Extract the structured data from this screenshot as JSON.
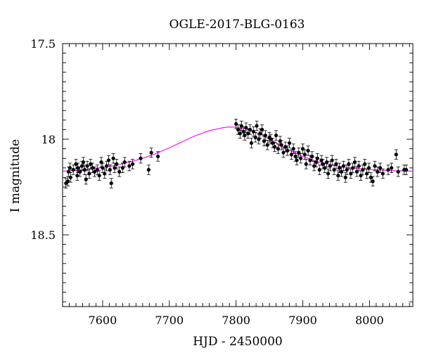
{
  "chart_data": {
    "type": "scatter",
    "title": "OGLE-2017-BLG-0163",
    "xlabel": "HJD - 2450000",
    "ylabel": "I magnitude",
    "xlim": [
      7540,
      8065
    ],
    "ylim": [
      18.875,
      17.5
    ],
    "y_inverted": true,
    "xticks": [
      7600,
      7700,
      7800,
      7900,
      8000
    ],
    "xtick_labels": [
      "7600",
      "7700",
      "7800",
      "7900",
      "8000"
    ],
    "yticks": [
      17.5,
      18,
      18.5
    ],
    "ytick_labels": [
      "17.5",
      "18",
      "18.5"
    ],
    "grid": false,
    "colors": {
      "points": "#000000",
      "model": "#ff00ff"
    },
    "series": [
      {
        "kind": "points_with_errorbars",
        "points": [
          {
            "x": 7545,
            "y": 18.23,
            "err": 0.025
          },
          {
            "x": 7548,
            "y": 18.22,
            "err": 0.025
          },
          {
            "x": 7549,
            "y": 18.17,
            "err": 0.025
          },
          {
            "x": 7551,
            "y": 18.15,
            "err": 0.025
          },
          {
            "x": 7552,
            "y": 18.2,
            "err": 0.025
          },
          {
            "x": 7556,
            "y": 18.16,
            "err": 0.025
          },
          {
            "x": 7560,
            "y": 18.13,
            "err": 0.025
          },
          {
            "x": 7562,
            "y": 18.19,
            "err": 0.025
          },
          {
            "x": 7563,
            "y": 18.15,
            "err": 0.025
          },
          {
            "x": 7566,
            "y": 18.17,
            "err": 0.025
          },
          {
            "x": 7569,
            "y": 18.14,
            "err": 0.025
          },
          {
            "x": 7571,
            "y": 18.12,
            "err": 0.025
          },
          {
            "x": 7573,
            "y": 18.16,
            "err": 0.025
          },
          {
            "x": 7575,
            "y": 18.21,
            "err": 0.025
          },
          {
            "x": 7577,
            "y": 18.14,
            "err": 0.025
          },
          {
            "x": 7580,
            "y": 18.18,
            "err": 0.025
          },
          {
            "x": 7582,
            "y": 18.13,
            "err": 0.025
          },
          {
            "x": 7585,
            "y": 18.15,
            "err": 0.025
          },
          {
            "x": 7588,
            "y": 18.17,
            "err": 0.025
          },
          {
            "x": 7592,
            "y": 18.16,
            "err": 0.025
          },
          {
            "x": 7595,
            "y": 18.19,
            "err": 0.025
          },
          {
            "x": 7598,
            "y": 18.12,
            "err": 0.025
          },
          {
            "x": 7600,
            "y": 18.15,
            "err": 0.025
          },
          {
            "x": 7603,
            "y": 18.18,
            "err": 0.025
          },
          {
            "x": 7606,
            "y": 18.14,
            "err": 0.025
          },
          {
            "x": 7609,
            "y": 18.11,
            "err": 0.025
          },
          {
            "x": 7611,
            "y": 18.16,
            "err": 0.025
          },
          {
            "x": 7613,
            "y": 18.23,
            "err": 0.025
          },
          {
            "x": 7616,
            "y": 18.1,
            "err": 0.025
          },
          {
            "x": 7618,
            "y": 18.15,
            "err": 0.025
          },
          {
            "x": 7621,
            "y": 18.13,
            "err": 0.025
          },
          {
            "x": 7625,
            "y": 18.17,
            "err": 0.025
          },
          {
            "x": 7630,
            "y": 18.15,
            "err": 0.025
          },
          {
            "x": 7633,
            "y": 18.12,
            "err": 0.025
          },
          {
            "x": 7640,
            "y": 18.14,
            "err": 0.025
          },
          {
            "x": 7645,
            "y": 18.13,
            "err": 0.025
          },
          {
            "x": 7657,
            "y": 18.1,
            "err": 0.025
          },
          {
            "x": 7669,
            "y": 18.16,
            "err": 0.025
          },
          {
            "x": 7673,
            "y": 18.07,
            "err": 0.025
          },
          {
            "x": 7683,
            "y": 18.09,
            "err": 0.025
          },
          {
            "x": 7800,
            "y": 17.92,
            "err": 0.025
          },
          {
            "x": 7803,
            "y": 17.95,
            "err": 0.025
          },
          {
            "x": 7806,
            "y": 17.97,
            "err": 0.025
          },
          {
            "x": 7808,
            "y": 17.93,
            "err": 0.025
          },
          {
            "x": 7811,
            "y": 17.96,
            "err": 0.025
          },
          {
            "x": 7813,
            "y": 17.98,
            "err": 0.025
          },
          {
            "x": 7815,
            "y": 17.94,
            "err": 0.025
          },
          {
            "x": 7818,
            "y": 17.97,
            "err": 0.025
          },
          {
            "x": 7821,
            "y": 17.95,
            "err": 0.025
          },
          {
            "x": 7823,
            "y": 18.02,
            "err": 0.025
          },
          {
            "x": 7826,
            "y": 17.96,
            "err": 0.025
          },
          {
            "x": 7829,
            "y": 17.99,
            "err": 0.025
          },
          {
            "x": 7831,
            "y": 17.93,
            "err": 0.025
          },
          {
            "x": 7834,
            "y": 18.0,
            "err": 0.025
          },
          {
            "x": 7836,
            "y": 17.97,
            "err": 0.025
          },
          {
            "x": 7839,
            "y": 17.95,
            "err": 0.025
          },
          {
            "x": 7842,
            "y": 18.01,
            "err": 0.025
          },
          {
            "x": 7844,
            "y": 17.98,
            "err": 0.025
          },
          {
            "x": 7847,
            "y": 18.03,
            "err": 0.025
          },
          {
            "x": 7850,
            "y": 17.99,
            "err": 0.025
          },
          {
            "x": 7852,
            "y": 18.0,
            "err": 0.025
          },
          {
            "x": 7855,
            "y": 18.02,
            "err": 0.025
          },
          {
            "x": 7858,
            "y": 18.04,
            "err": 0.025
          },
          {
            "x": 7860,
            "y": 17.98,
            "err": 0.025
          },
          {
            "x": 7863,
            "y": 18.05,
            "err": 0.025
          },
          {
            "x": 7866,
            "y": 18.01,
            "err": 0.025
          },
          {
            "x": 7868,
            "y": 18.03,
            "err": 0.025
          },
          {
            "x": 7871,
            "y": 18.07,
            "err": 0.025
          },
          {
            "x": 7874,
            "y": 18.04,
            "err": 0.025
          },
          {
            "x": 7877,
            "y": 18.06,
            "err": 0.025
          },
          {
            "x": 7880,
            "y": 18.02,
            "err": 0.025
          },
          {
            "x": 7883,
            "y": 18.08,
            "err": 0.025
          },
          {
            "x": 7886,
            "y": 18.05,
            "err": 0.025
          },
          {
            "x": 7889,
            "y": 18.09,
            "err": 0.025
          },
          {
            "x": 7891,
            "y": 18.11,
            "err": 0.025
          },
          {
            "x": 7894,
            "y": 18.07,
            "err": 0.025
          },
          {
            "x": 7897,
            "y": 18.1,
            "err": 0.025
          },
          {
            "x": 7900,
            "y": 18.05,
            "err": 0.025
          },
          {
            "x": 7903,
            "y": 18.08,
            "err": 0.025
          },
          {
            "x": 7905,
            "y": 18.13,
            "err": 0.025
          },
          {
            "x": 7908,
            "y": 18.06,
            "err": 0.025
          },
          {
            "x": 7911,
            "y": 18.11,
            "err": 0.025
          },
          {
            "x": 7914,
            "y": 18.09,
            "err": 0.025
          },
          {
            "x": 7917,
            "y": 18.14,
            "err": 0.025
          },
          {
            "x": 7920,
            "y": 18.12,
            "err": 0.025
          },
          {
            "x": 7922,
            "y": 18.1,
            "err": 0.025
          },
          {
            "x": 7925,
            "y": 18.16,
            "err": 0.025
          },
          {
            "x": 7928,
            "y": 18.11,
            "err": 0.025
          },
          {
            "x": 7930,
            "y": 18.13,
            "err": 0.025
          },
          {
            "x": 7933,
            "y": 18.15,
            "err": 0.025
          },
          {
            "x": 7936,
            "y": 18.12,
            "err": 0.025
          },
          {
            "x": 7938,
            "y": 18.18,
            "err": 0.025
          },
          {
            "x": 7941,
            "y": 18.14,
            "err": 0.025
          },
          {
            "x": 7944,
            "y": 18.11,
            "err": 0.025
          },
          {
            "x": 7947,
            "y": 18.16,
            "err": 0.025
          },
          {
            "x": 7950,
            "y": 18.13,
            "err": 0.025
          },
          {
            "x": 7953,
            "y": 18.19,
            "err": 0.025
          },
          {
            "x": 7955,
            "y": 18.15,
            "err": 0.025
          },
          {
            "x": 7958,
            "y": 18.17,
            "err": 0.025
          },
          {
            "x": 7961,
            "y": 18.14,
            "err": 0.025
          },
          {
            "x": 7964,
            "y": 18.2,
            "err": 0.025
          },
          {
            "x": 7966,
            "y": 18.16,
            "err": 0.025
          },
          {
            "x": 7969,
            "y": 18.13,
            "err": 0.025
          },
          {
            "x": 7972,
            "y": 18.18,
            "err": 0.025
          },
          {
            "x": 7975,
            "y": 18.15,
            "err": 0.025
          },
          {
            "x": 7978,
            "y": 18.12,
            "err": 0.025
          },
          {
            "x": 7981,
            "y": 18.17,
            "err": 0.025
          },
          {
            "x": 7984,
            "y": 18.14,
            "err": 0.025
          },
          {
            "x": 7987,
            "y": 18.19,
            "err": 0.025
          },
          {
            "x": 7990,
            "y": 18.16,
            "err": 0.025
          },
          {
            "x": 7993,
            "y": 18.13,
            "err": 0.025
          },
          {
            "x": 7996,
            "y": 18.18,
            "err": 0.025
          },
          {
            "x": 7999,
            "y": 18.15,
            "err": 0.025
          },
          {
            "x": 8002,
            "y": 18.2,
            "err": 0.025
          },
          {
            "x": 8005,
            "y": 18.22,
            "err": 0.025
          },
          {
            "x": 8008,
            "y": 18.14,
            "err": 0.025
          },
          {
            "x": 8012,
            "y": 18.17,
            "err": 0.025
          },
          {
            "x": 8016,
            "y": 18.15,
            "err": 0.025
          },
          {
            "x": 8020,
            "y": 18.18,
            "err": 0.025
          },
          {
            "x": 8028,
            "y": 18.16,
            "err": 0.025
          },
          {
            "x": 8033,
            "y": 18.15,
            "err": 0.025
          },
          {
            "x": 8040,
            "y": 18.08,
            "err": 0.025
          },
          {
            "x": 8043,
            "y": 18.17,
            "err": 0.025
          },
          {
            "x": 8052,
            "y": 18.16,
            "err": 0.025
          },
          {
            "x": 8055,
            "y": 18.16,
            "err": 0.025
          }
        ]
      },
      {
        "kind": "model_curve",
        "x": [
          7540,
          7560,
          7580,
          7600,
          7620,
          7640,
          7660,
          7680,
          7700,
          7720,
          7740,
          7760,
          7780,
          7790,
          7800,
          7810,
          7820,
          7840,
          7860,
          7880,
          7900,
          7920,
          7940,
          7960,
          7980,
          8000,
          8020,
          8040,
          8065
        ],
        "y": [
          18.167,
          18.163,
          18.157,
          18.148,
          18.136,
          18.12,
          18.1,
          18.075,
          18.045,
          18.012,
          17.98,
          17.955,
          17.94,
          17.936,
          17.937,
          17.942,
          17.952,
          17.98,
          18.02,
          18.058,
          18.09,
          18.115,
          18.132,
          18.145,
          18.153,
          18.158,
          18.162,
          18.165,
          18.167
        ]
      }
    ]
  }
}
